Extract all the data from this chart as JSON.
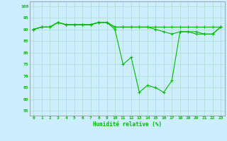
{
  "title": "",
  "xlabel": "Humidité relative (%)",
  "ylabel": "",
  "bg_color": "#cceeff",
  "grid_color": "#aaddcc",
  "line_color": "#00bb00",
  "marker_color": "#00bb00",
  "xlim": [
    -0.5,
    23.5
  ],
  "ylim": [
    53,
    102
  ],
  "yticks": [
    55,
    60,
    65,
    70,
    75,
    80,
    85,
    90,
    95,
    100
  ],
  "xticks": [
    0,
    1,
    2,
    3,
    4,
    5,
    6,
    7,
    8,
    9,
    10,
    11,
    12,
    13,
    14,
    15,
    16,
    17,
    18,
    19,
    20,
    21,
    22,
    23
  ],
  "series": [
    [
      90,
      91,
      91,
      93,
      92,
      92,
      92,
      92,
      93,
      93,
      91,
      91,
      91,
      91,
      91,
      91,
      91,
      91,
      91,
      91,
      91,
      91,
      91,
      91
    ],
    [
      90,
      91,
      91,
      93,
      92,
      92,
      92,
      92,
      93,
      93,
      90,
      75,
      78,
      63,
      66,
      65,
      63,
      68,
      89,
      89,
      88,
      88,
      88,
      91
    ],
    [
      90,
      91,
      91,
      93,
      92,
      92,
      92,
      92,
      93,
      93,
      91,
      91,
      91,
      91,
      91,
      90,
      89,
      88,
      89,
      89,
      89,
      88,
      88,
      91
    ]
  ]
}
